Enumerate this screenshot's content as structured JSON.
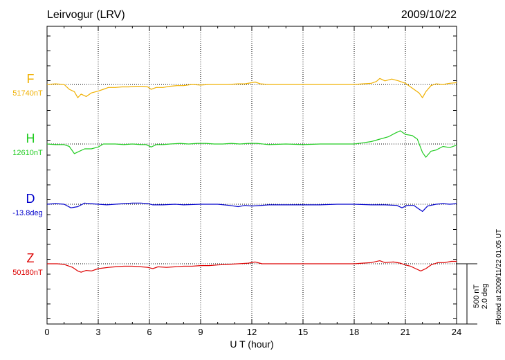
{
  "header": {
    "station": "Leirvogur (LRV)",
    "date": "2009/10/22"
  },
  "footer_note": "Plotted at 2009/11/22 01:05 UT",
  "scale_bar": {
    "line1": "500 nT",
    "line2": "2.0 deg"
  },
  "chart_data": {
    "type": "line",
    "xlabel": "U T (hour)",
    "xlim": [
      0,
      24
    ],
    "xticks": [
      "0",
      "3",
      "6",
      "9",
      "12",
      "15",
      "18",
      "21",
      "24"
    ],
    "grid": true,
    "scale_nT_per_bar": 500,
    "series": [
      {
        "name": "F",
        "baseline_label": "51740nT",
        "color": "#f0b000",
        "points": [
          [
            0,
            0
          ],
          [
            0.5,
            5
          ],
          [
            1.0,
            0
          ],
          [
            1.3,
            -40
          ],
          [
            1.6,
            -60
          ],
          [
            1.8,
            -110
          ],
          [
            2.0,
            -80
          ],
          [
            2.3,
            -100
          ],
          [
            2.6,
            -70
          ],
          [
            3.0,
            -55
          ],
          [
            3.3,
            -40
          ],
          [
            3.6,
            -25
          ],
          [
            4.0,
            -25
          ],
          [
            4.4,
            -20
          ],
          [
            4.8,
            -20
          ],
          [
            5.2,
            -15
          ],
          [
            5.6,
            -15
          ],
          [
            5.9,
            -20
          ],
          [
            6.1,
            -40
          ],
          [
            6.4,
            -25
          ],
          [
            6.8,
            -25
          ],
          [
            7.2,
            -15
          ],
          [
            7.6,
            -10
          ],
          [
            8.0,
            -10
          ],
          [
            8.5,
            0
          ],
          [
            9.0,
            -5
          ],
          [
            9.5,
            0
          ],
          [
            10.0,
            0
          ],
          [
            10.6,
            0
          ],
          [
            11.2,
            5
          ],
          [
            11.6,
            5
          ],
          [
            12.0,
            15
          ],
          [
            12.2,
            20
          ],
          [
            12.5,
            5
          ],
          [
            13.0,
            0
          ],
          [
            14.0,
            0
          ],
          [
            15.0,
            0
          ],
          [
            16.0,
            0
          ],
          [
            17.0,
            0
          ],
          [
            18.0,
            0
          ],
          [
            18.5,
            5
          ],
          [
            19.0,
            10
          ],
          [
            19.3,
            25
          ],
          [
            19.5,
            50
          ],
          [
            19.8,
            30
          ],
          [
            20.2,
            45
          ],
          [
            20.6,
            30
          ],
          [
            21.0,
            10
          ],
          [
            21.3,
            -20
          ],
          [
            21.6,
            -50
          ],
          [
            21.8,
            -70
          ],
          [
            22.0,
            -110
          ],
          [
            22.2,
            -60
          ],
          [
            22.5,
            -10
          ],
          [
            22.8,
            5
          ],
          [
            23.2,
            0
          ],
          [
            23.6,
            10
          ],
          [
            24.0,
            15
          ]
        ]
      },
      {
        "name": "H",
        "baseline_label": "12610nT",
        "color": "#22cc22",
        "points": [
          [
            0,
            0
          ],
          [
            0.5,
            -5
          ],
          [
            1.0,
            -5
          ],
          [
            1.3,
            -20
          ],
          [
            1.6,
            -80
          ],
          [
            1.9,
            -60
          ],
          [
            2.2,
            -40
          ],
          [
            2.6,
            -40
          ],
          [
            3.0,
            -25
          ],
          [
            3.3,
            0
          ],
          [
            3.7,
            0
          ],
          [
            4.0,
            0
          ],
          [
            4.5,
            -5
          ],
          [
            5.0,
            0
          ],
          [
            5.5,
            -5
          ],
          [
            5.8,
            -5
          ],
          [
            6.1,
            -25
          ],
          [
            6.4,
            -5
          ],
          [
            6.8,
            -5
          ],
          [
            7.2,
            0
          ],
          [
            7.8,
            5
          ],
          [
            8.3,
            0
          ],
          [
            8.8,
            5
          ],
          [
            9.3,
            5
          ],
          [
            9.8,
            0
          ],
          [
            10.3,
            0
          ],
          [
            10.8,
            5
          ],
          [
            11.3,
            0
          ],
          [
            11.8,
            5
          ],
          [
            12.3,
            5
          ],
          [
            13.0,
            -5
          ],
          [
            14.0,
            0
          ],
          [
            15.0,
            -5
          ],
          [
            16.0,
            0
          ],
          [
            17.0,
            0
          ],
          [
            18.0,
            0
          ],
          [
            18.5,
            10
          ],
          [
            19.0,
            20
          ],
          [
            19.5,
            40
          ],
          [
            20.0,
            60
          ],
          [
            20.4,
            90
          ],
          [
            20.7,
            110
          ],
          [
            21.0,
            80
          ],
          [
            21.4,
            70
          ],
          [
            21.7,
            40
          ],
          [
            22.0,
            -70
          ],
          [
            22.2,
            -110
          ],
          [
            22.5,
            -60
          ],
          [
            22.8,
            -50
          ],
          [
            23.2,
            -20
          ],
          [
            23.6,
            -30
          ],
          [
            24.0,
            -10
          ]
        ]
      },
      {
        "name": "D",
        "baseline_label": "-13.8deg",
        "color": "#0000cc",
        "points": [
          [
            0,
            0
          ],
          [
            0.5,
            5
          ],
          [
            1.0,
            0
          ],
          [
            1.4,
            -30
          ],
          [
            1.8,
            -20
          ],
          [
            2.2,
            10
          ],
          [
            2.5,
            5
          ],
          [
            3.0,
            0
          ],
          [
            3.5,
            -5
          ],
          [
            4.0,
            0
          ],
          [
            4.5,
            5
          ],
          [
            5.0,
            10
          ],
          [
            5.5,
            10
          ],
          [
            5.9,
            5
          ],
          [
            6.2,
            -5
          ],
          [
            6.8,
            -5
          ],
          [
            7.5,
            0
          ],
          [
            8.0,
            -5
          ],
          [
            9.0,
            0
          ],
          [
            10.0,
            0
          ],
          [
            10.7,
            -10
          ],
          [
            11.2,
            -20
          ],
          [
            11.6,
            -10
          ],
          [
            12.0,
            -15
          ],
          [
            13.0,
            -5
          ],
          [
            14.0,
            -5
          ],
          [
            15.0,
            -5
          ],
          [
            16.0,
            -5
          ],
          [
            17.0,
            0
          ],
          [
            18.0,
            0
          ],
          [
            19.0,
            -5
          ],
          [
            19.8,
            -5
          ],
          [
            20.5,
            -10
          ],
          [
            20.8,
            -30
          ],
          [
            21.1,
            -10
          ],
          [
            21.5,
            -10
          ],
          [
            21.8,
            -40
          ],
          [
            22.0,
            -60
          ],
          [
            22.3,
            -15
          ],
          [
            22.8,
            0
          ],
          [
            23.2,
            5
          ],
          [
            23.6,
            0
          ],
          [
            24.0,
            5
          ]
        ]
      },
      {
        "name": "Z",
        "baseline_label": "50180nT",
        "color": "#dd0000",
        "points": [
          [
            0,
            0
          ],
          [
            0.6,
            0
          ],
          [
            1.0,
            -5
          ],
          [
            1.5,
            -30
          ],
          [
            1.8,
            -60
          ],
          [
            2.0,
            -70
          ],
          [
            2.3,
            -55
          ],
          [
            2.6,
            -60
          ],
          [
            3.0,
            -40
          ],
          [
            3.3,
            -35
          ],
          [
            3.6,
            -30
          ],
          [
            4.0,
            -25
          ],
          [
            4.5,
            -20
          ],
          [
            5.0,
            -20
          ],
          [
            5.5,
            -25
          ],
          [
            5.9,
            -30
          ],
          [
            6.2,
            -40
          ],
          [
            6.5,
            -25
          ],
          [
            7.0,
            -30
          ],
          [
            7.5,
            -25
          ],
          [
            8.0,
            -20
          ],
          [
            8.5,
            -20
          ],
          [
            9.0,
            -15
          ],
          [
            9.5,
            -15
          ],
          [
            10.0,
            -10
          ],
          [
            10.6,
            -5
          ],
          [
            11.2,
            0
          ],
          [
            11.8,
            5
          ],
          [
            12.2,
            15
          ],
          [
            12.6,
            0
          ],
          [
            13.0,
            0
          ],
          [
            14.0,
            0
          ],
          [
            15.0,
            0
          ],
          [
            16.0,
            0
          ],
          [
            17.0,
            0
          ],
          [
            18.0,
            0
          ],
          [
            18.5,
            5
          ],
          [
            19.0,
            10
          ],
          [
            19.5,
            25
          ],
          [
            19.8,
            10
          ],
          [
            20.3,
            15
          ],
          [
            20.7,
            5
          ],
          [
            21.0,
            -10
          ],
          [
            21.3,
            -20
          ],
          [
            21.6,
            -40
          ],
          [
            21.9,
            -60
          ],
          [
            22.2,
            -40
          ],
          [
            22.5,
            -10
          ],
          [
            22.9,
            10
          ],
          [
            23.3,
            10
          ],
          [
            23.7,
            20
          ],
          [
            24.0,
            20
          ]
        ]
      }
    ]
  }
}
